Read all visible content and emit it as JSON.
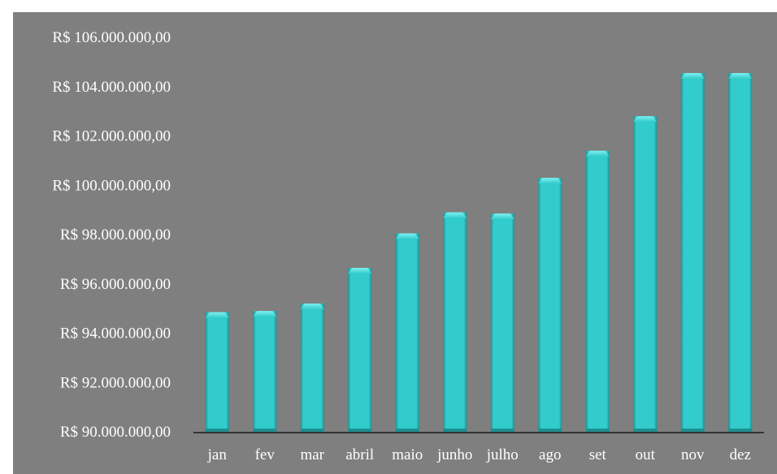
{
  "chart_data": {
    "type": "bar",
    "title": "",
    "xlabel": "",
    "ylabel": "",
    "categories": [
      "jan",
      "fev",
      "mar",
      "abril",
      "maio",
      "junho",
      "julho",
      "ago",
      "set",
      "out",
      "nov",
      "dez"
    ],
    "values": [
      94850000,
      94900000,
      95200000,
      96650000,
      98050000,
      98900000,
      98850000,
      100300000,
      101400000,
      102800000,
      104550000,
      104550000
    ],
    "ylim": [
      90000000,
      106000000
    ],
    "yticks": [
      90000000,
      92000000,
      94000000,
      96000000,
      98000000,
      100000000,
      102000000,
      104000000,
      106000000
    ],
    "ytick_labels": [
      "R$ 90.000.000,00",
      "R$ 92.000.000,00",
      "R$ 94.000.000,00",
      "R$ 96.000.000,00",
      "R$ 98.000.000,00",
      "R$ 100.000.000,00",
      "R$ 102.000.000,00",
      "R$ 104.000.000,00",
      "R$ 106.000.000,00"
    ],
    "grid": false,
    "legend": "none",
    "colors": {
      "background": "#7f7f7f",
      "bar": "#33cccc",
      "bar_highlight": "#7ff0f0",
      "bar_shadow": "#1f9090",
      "axis": "#333333",
      "text": "#ffffff"
    }
  }
}
